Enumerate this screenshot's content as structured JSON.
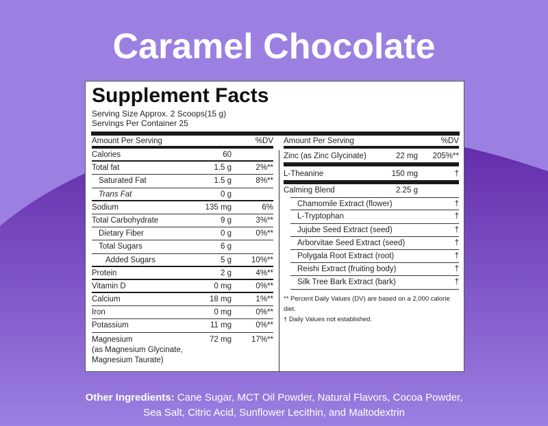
{
  "title": "Caramel Chocolate",
  "colors": {
    "background": "#9b80e2",
    "wave": "#6530b0",
    "panel": "#ffffff"
  },
  "facts": {
    "heading": "Supplement Facts",
    "serving_size": "Serving Size Approx. 2 Scoops(15 g)",
    "servings_per_container": "Servings Per Container 25",
    "left": {
      "header": {
        "name": "Amount Per Serving",
        "dv": "%DV"
      },
      "rows": [
        {
          "name": "Calories",
          "amount": "60",
          "dv": ""
        },
        {
          "name": "Total fat",
          "amount": "1.5 g",
          "dv": "2%**"
        },
        {
          "name": "Saturated Fat",
          "amount": "1.5 g",
          "dv": "8%**",
          "indent": 1
        },
        {
          "name": "Trans Fat",
          "amount": "0 g",
          "dv": "",
          "indent": 1,
          "italic": true
        },
        {
          "name": "Sodium",
          "amount": "135 mg",
          "dv": "6%"
        },
        {
          "name": "Total Carbohydrate",
          "amount": "9 g",
          "dv": "3%**"
        },
        {
          "name": "Dietary Fiber",
          "amount": "0 g",
          "dv": "0%**",
          "indent": 1
        },
        {
          "name": "Total Sugars",
          "amount": "6 g",
          "dv": "",
          "indent": 1
        },
        {
          "name": "Added Sugars",
          "amount": "5 g",
          "dv": "10%**",
          "indent": 2
        },
        {
          "name": "Protein",
          "amount": "2 g",
          "dv": "4%**"
        },
        {
          "name": "Vitamin D",
          "amount": "0 mg",
          "dv": "0%**"
        },
        {
          "name": "Calcium",
          "amount": "18 mg",
          "dv": "1%**"
        },
        {
          "name": "Iron",
          "amount": "0 mg",
          "dv": "0%**"
        },
        {
          "name": "Potassium",
          "amount": "11 mg",
          "dv": "0%**"
        }
      ],
      "magnesium": {
        "name": "Magnesium",
        "sub1": "(as Magnesium Glycinate,",
        "sub2": "Magnesium Taurate)",
        "amount": "72 mg",
        "dv": "17%**"
      }
    },
    "right": {
      "header": {
        "name": "Amount Per Serving",
        "dv": "%DV"
      },
      "rows": [
        {
          "name": "Zinc (as Zinc Glycinate)",
          "amount": "22 mg",
          "dv": "205%**"
        },
        {
          "name": "L-Theanine",
          "amount": "150 mg",
          "dv": "†"
        },
        {
          "name": "Calming Blend",
          "amount": "2.25 g",
          "dv": ""
        }
      ],
      "blend": [
        {
          "name": "Chamomile Extract (flower)",
          "dv": "†"
        },
        {
          "name": "L-Tryptophan",
          "dv": "†"
        },
        {
          "name": "Jujube Seed Extract (seed)",
          "dv": "†"
        },
        {
          "name": "Arborvitae Seed Extract (seed)",
          "dv": "†"
        },
        {
          "name": "Polygala Root Extract (root)",
          "dv": "†"
        },
        {
          "name": "Reishi Extract (fruiting body)",
          "dv": "†"
        },
        {
          "name": "Silk Tree Bark Extract (bark)",
          "dv": "†"
        }
      ],
      "footnote1": "** Percent Daily Values (DV) are based on a 2,000 calorie diet.",
      "footnote2": "† Daily Values not established."
    }
  },
  "other_ingredients": {
    "label": "Other Ingredients:",
    "line1": " Cane Sugar, MCT Oil Powder, Natural Flavors, Cocoa Powder,",
    "line2": "Sea Salt, Citric Acid, Sunflower Lecithin, and Maltodextrin"
  }
}
